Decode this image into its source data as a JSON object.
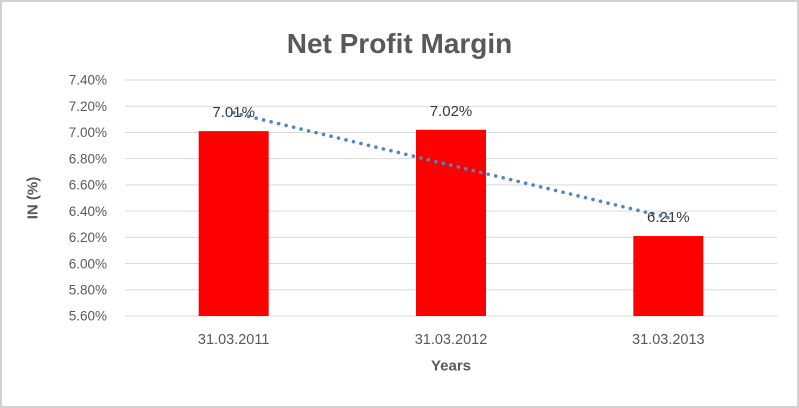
{
  "window": {
    "background": "#FFFFFF",
    "frame_border_color": "#D2D2D2"
  },
  "chart_data": {
    "type": "bar",
    "title": "Net Profit Margin",
    "xlabel": "Years",
    "ylabel": "IN (%)",
    "categories": [
      "31.03.2011",
      "31.03.2012",
      "31.03.2013"
    ],
    "values": [
      7.01,
      7.02,
      6.21
    ],
    "data_labels": [
      "7.01%",
      "7.02%",
      "6.21%"
    ],
    "y_axis": {
      "min": 5.6,
      "max": 7.4,
      "step": 0.2,
      "tick_labels": [
        "7.40%",
        "7.20%",
        "7.00%",
        "6.80%",
        "6.60%",
        "6.40%",
        "6.20%",
        "6.00%",
        "5.80%",
        "5.60%"
      ]
    },
    "grid": true,
    "legend": "none",
    "trendline": {
      "type": "linear",
      "style": "dotted",
      "start_value": 7.15,
      "end_value": 6.35
    },
    "colors": {
      "bar": "#FF0000",
      "trendline": "#4F86C6",
      "gridline": "#D9D9D9",
      "title_text": "#595959",
      "axis_text": "#595959",
      "data_label_text": "#3A3A3A"
    }
  }
}
